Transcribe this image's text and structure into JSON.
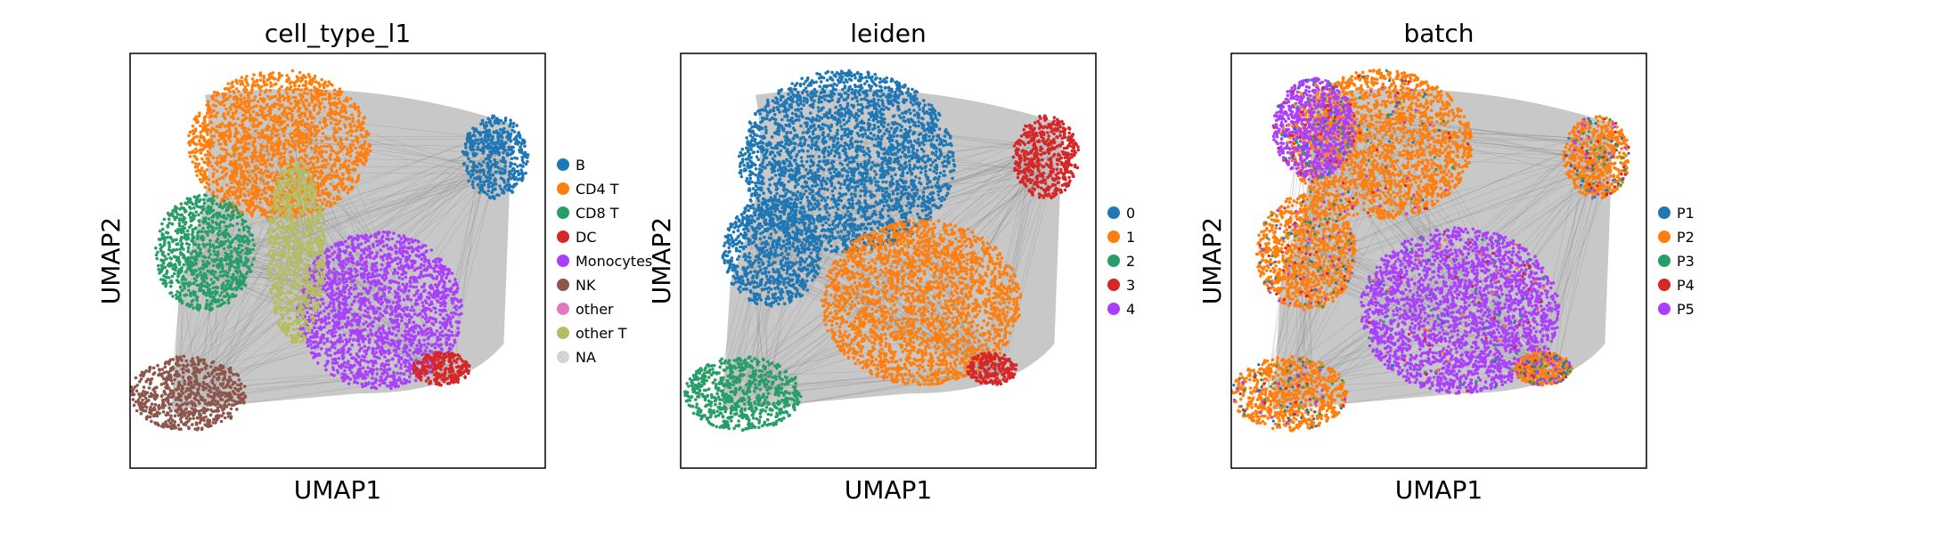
{
  "chart_data": [
    {
      "type": "scatter",
      "title": "cell_type_l1",
      "xlabel": "UMAP1",
      "ylabel": "UMAP2",
      "legend_position": "right",
      "legend": [
        {
          "label": "B",
          "color": "#1f77b4"
        },
        {
          "label": "CD4 T",
          "color": "#ff7f0e"
        },
        {
          "label": "CD8 T",
          "color": "#279e68"
        },
        {
          "label": "DC",
          "color": "#d62728"
        },
        {
          "label": "Monocytes",
          "color": "#aa40fc"
        },
        {
          "label": "NK",
          "color": "#8c564b"
        },
        {
          "label": "other",
          "color": "#e377c2"
        },
        {
          "label": "other T",
          "color": "#b5bd61"
        },
        {
          "label": "NA",
          "color": "#d3d3d3"
        }
      ],
      "edges_color": "#808080",
      "clusters": [
        {
          "label": "CD4 T",
          "cx": 0.36,
          "cy": 0.22,
          "rx": 0.22,
          "ry": 0.18
        },
        {
          "label": "CD8 T",
          "cx": 0.18,
          "cy": 0.48,
          "rx": 0.12,
          "ry": 0.14
        },
        {
          "label": "Monocytes",
          "cx": 0.6,
          "cy": 0.62,
          "rx": 0.2,
          "ry": 0.19
        },
        {
          "label": "NK",
          "cx": 0.14,
          "cy": 0.82,
          "rx": 0.14,
          "ry": 0.09
        },
        {
          "label": "B",
          "cx": 0.88,
          "cy": 0.25,
          "rx": 0.08,
          "ry": 0.1
        },
        {
          "label": "DC",
          "cx": 0.75,
          "cy": 0.76,
          "rx": 0.07,
          "ry": 0.04
        },
        {
          "label": "other T",
          "cx": 0.4,
          "cy": 0.48,
          "rx": 0.07,
          "ry": 0.22
        }
      ]
    },
    {
      "type": "scatter",
      "title": "leiden",
      "xlabel": "UMAP1",
      "ylabel": "UMAP2",
      "legend_position": "right",
      "legend": [
        {
          "label": "0",
          "color": "#1f77b4"
        },
        {
          "label": "1",
          "color": "#ff7f0e"
        },
        {
          "label": "2",
          "color": "#279e68"
        },
        {
          "label": "3",
          "color": "#d62728"
        },
        {
          "label": "4",
          "color": "#aa40fc"
        }
      ],
      "edges_color": "#808080",
      "clusters": [
        {
          "label": "0",
          "cx": 0.4,
          "cy": 0.26,
          "rx": 0.26,
          "ry": 0.22
        },
        {
          "label": "0",
          "cx": 0.22,
          "cy": 0.48,
          "rx": 0.12,
          "ry": 0.13
        },
        {
          "label": "1",
          "cx": 0.58,
          "cy": 0.6,
          "rx": 0.24,
          "ry": 0.2
        },
        {
          "label": "2",
          "cx": 0.15,
          "cy": 0.82,
          "rx": 0.14,
          "ry": 0.09
        },
        {
          "label": "3",
          "cx": 0.88,
          "cy": 0.25,
          "rx": 0.08,
          "ry": 0.1
        },
        {
          "label": "3",
          "cx": 0.75,
          "cy": 0.76,
          "rx": 0.06,
          "ry": 0.04
        }
      ]
    },
    {
      "type": "scatter",
      "title": "batch",
      "xlabel": "UMAP1",
      "ylabel": "UMAP2",
      "legend_position": "right",
      "legend": [
        {
          "label": "P1",
          "color": "#1f77b4"
        },
        {
          "label": "P2",
          "color": "#ff7f0e"
        },
        {
          "label": "P3",
          "color": "#279e68"
        },
        {
          "label": "P4",
          "color": "#d62728"
        },
        {
          "label": "P5",
          "color": "#aa40fc"
        }
      ],
      "edges_color": "#808080",
      "clusters": [
        {
          "label": "P2",
          "cx": 0.36,
          "cy": 0.22,
          "rx": 0.22,
          "ry": 0.18
        },
        {
          "label": "P5",
          "cx": 0.2,
          "cy": 0.18,
          "rx": 0.1,
          "ry": 0.12
        },
        {
          "label": "P2",
          "cx": 0.18,
          "cy": 0.48,
          "rx": 0.12,
          "ry": 0.14
        },
        {
          "label": "P5",
          "cx": 0.55,
          "cy": 0.62,
          "rx": 0.24,
          "ry": 0.2
        },
        {
          "label": "P2",
          "cx": 0.14,
          "cy": 0.82,
          "rx": 0.14,
          "ry": 0.09
        },
        {
          "label": "P2",
          "cx": 0.88,
          "cy": 0.25,
          "rx": 0.08,
          "ry": 0.1
        },
        {
          "label": "P2",
          "cx": 0.75,
          "cy": 0.76,
          "rx": 0.07,
          "ry": 0.04
        }
      ]
    }
  ]
}
